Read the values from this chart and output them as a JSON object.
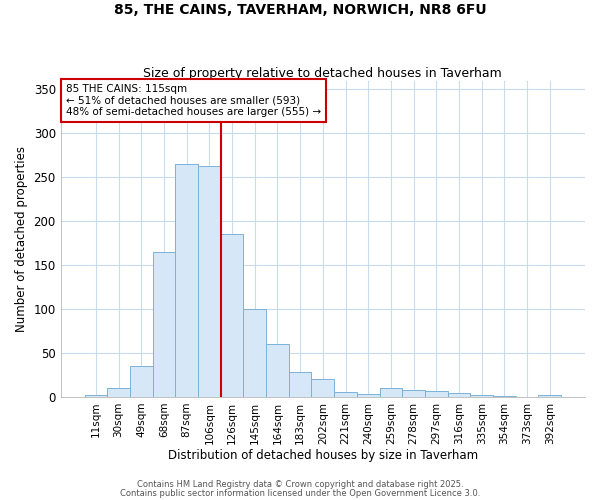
{
  "title1": "85, THE CAINS, TAVERHAM, NORWICH, NR8 6FU",
  "title2": "Size of property relative to detached houses in Taverham",
  "xlabel": "Distribution of detached houses by size in Taverham",
  "ylabel": "Number of detached properties",
  "bar_labels": [
    "11sqm",
    "30sqm",
    "49sqm",
    "68sqm",
    "87sqm",
    "106sqm",
    "126sqm",
    "145sqm",
    "164sqm",
    "183sqm",
    "202sqm",
    "221sqm",
    "240sqm",
    "259sqm",
    "278sqm",
    "297sqm",
    "316sqm",
    "335sqm",
    "354sqm",
    "373sqm",
    "392sqm"
  ],
  "bar_values": [
    2,
    10,
    35,
    165,
    265,
    263,
    185,
    100,
    60,
    28,
    20,
    6,
    3,
    10,
    8,
    7,
    5,
    2,
    1,
    0,
    2
  ],
  "bar_color": "#d6e8f7",
  "bar_edge_color": "#7ab3d8",
  "grid_color": "#c8dcf0",
  "background_color": "#ffffff",
  "vline_x": 5.5,
  "vline_color": "#cc0000",
  "annotation_text": "85 THE CAINS: 115sqm\n← 51% of detached houses are smaller (593)\n48% of semi-detached houses are larger (555) →",
  "annotation_box_color": "#ffffff",
  "annotation_box_edge": "#cc0000",
  "ylim": [
    0,
    360
  ],
  "yticks": [
    0,
    50,
    100,
    150,
    200,
    250,
    300,
    350
  ],
  "footer1": "Contains HM Land Registry data © Crown copyright and database right 2025.",
  "footer2": "Contains public sector information licensed under the Open Government Licence 3.0."
}
